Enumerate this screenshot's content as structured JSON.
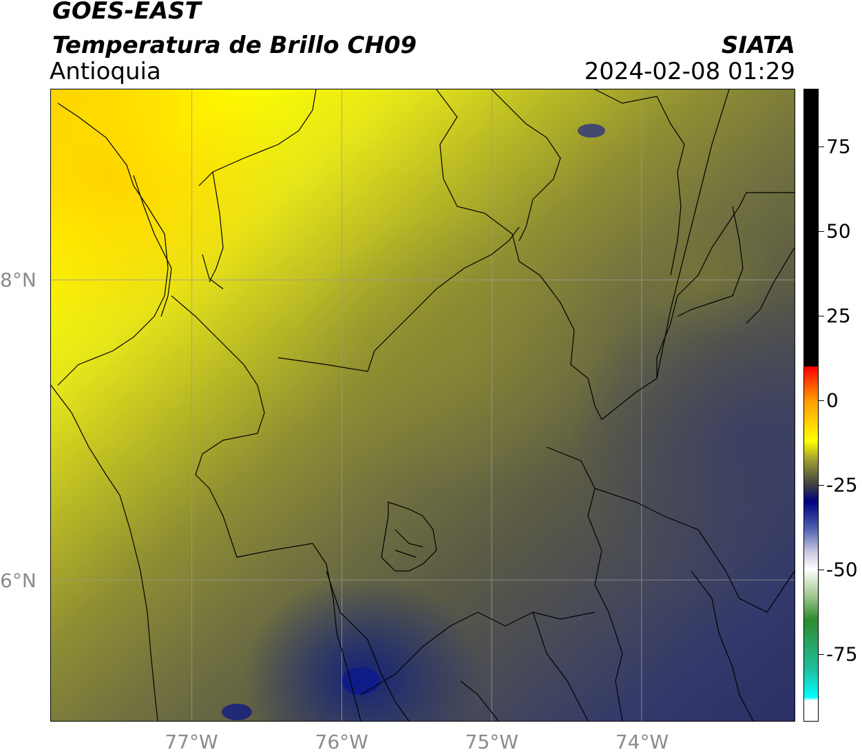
{
  "header": {
    "line1": "GOES-EAST",
    "line2": "Temperatura de Brillo CH09",
    "region": "Antioquia",
    "agency": "SIATA",
    "timestamp": "2024-02-08 01:29"
  },
  "map": {
    "lon_range": [
      -77.94,
      -72.98
    ],
    "lat_range": [
      5.06,
      9.27
    ],
    "lon_ticks": [
      {
        "value": -77,
        "label": "77°W"
      },
      {
        "value": -76,
        "label": "76°W"
      },
      {
        "value": -75,
        "label": "75°W"
      },
      {
        "value": -74,
        "label": "74°W"
      }
    ],
    "lat_ticks": [
      {
        "value": 8,
        "label": "8°N"
      },
      {
        "value": 6,
        "label": "6°N"
      }
    ],
    "colors": {
      "bright_yellow": "#ffff00",
      "yellow_orange": "#ffd700",
      "olive": "#8b8b2e",
      "dark_olive": "#5f5f3f",
      "grey": "#4f4f4f",
      "navy": "#2a2f66",
      "deep_navy": "#101a80"
    }
  },
  "colorbar": {
    "range": [
      -95,
      92
    ],
    "ticks": [
      {
        "value": 75,
        "label": "75"
      },
      {
        "value": 50,
        "label": "50"
      },
      {
        "value": 25,
        "label": "25"
      },
      {
        "value": 0,
        "label": "0"
      },
      {
        "value": -25,
        "label": "-25"
      },
      {
        "value": -50,
        "label": "-50"
      },
      {
        "value": -75,
        "label": "-75"
      }
    ]
  }
}
